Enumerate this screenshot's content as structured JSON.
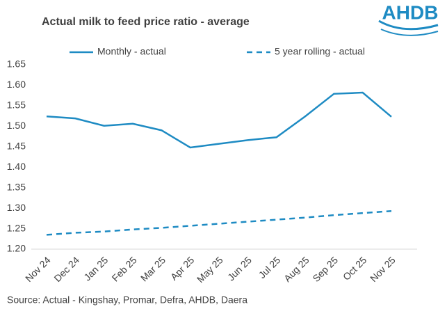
{
  "logo": "AHDB",
  "chart_data": {
    "type": "line",
    "title": "Actual milk to feed price ratio - average",
    "source": "Source: Actual - Kingshay, Promar, Defra, AHDB, Daera",
    "categories": [
      "Nov 24",
      "Dec 24",
      "Jan 25",
      "Feb 25",
      "Mar 25",
      "Apr 25",
      "May 25",
      "Jun 25",
      "Jul 25",
      "Aug 25",
      "Sep 25",
      "Oct 25",
      "Nov 25"
    ],
    "series": [
      {
        "name": "Monthly - actual",
        "color": "#1e8bc3",
        "line_style": "solid",
        "values": [
          1.524,
          1.519,
          1.501,
          1.506,
          1.49,
          1.448,
          1.457,
          1.466,
          1.473,
          1.524,
          1.579,
          1.582,
          1.523
        ]
      },
      {
        "name": "5 year rolling - actual",
        "color": "#1e8bc3",
        "line_style": "dashed",
        "values": [
          1.235,
          1.24,
          1.243,
          1.248,
          1.252,
          1.257,
          1.262,
          1.267,
          1.272,
          1.277,
          1.283,
          1.288,
          1.293
        ]
      }
    ],
    "ylim": [
      1.2,
      1.65
    ],
    "yticks": [
      {
        "value": 1.2,
        "label": "1.20"
      },
      1.25,
      {
        "value": 1.3,
        "label": "1.30"
      },
      1.35,
      {
        "value": 1.4,
        "label": "1.40"
      },
      1.45,
      {
        "value": 1.5,
        "label": "1.50"
      },
      1.55,
      {
        "value": 1.6,
        "label": "1.60"
      },
      1.65
    ],
    "grid": false,
    "legend": "top"
  }
}
